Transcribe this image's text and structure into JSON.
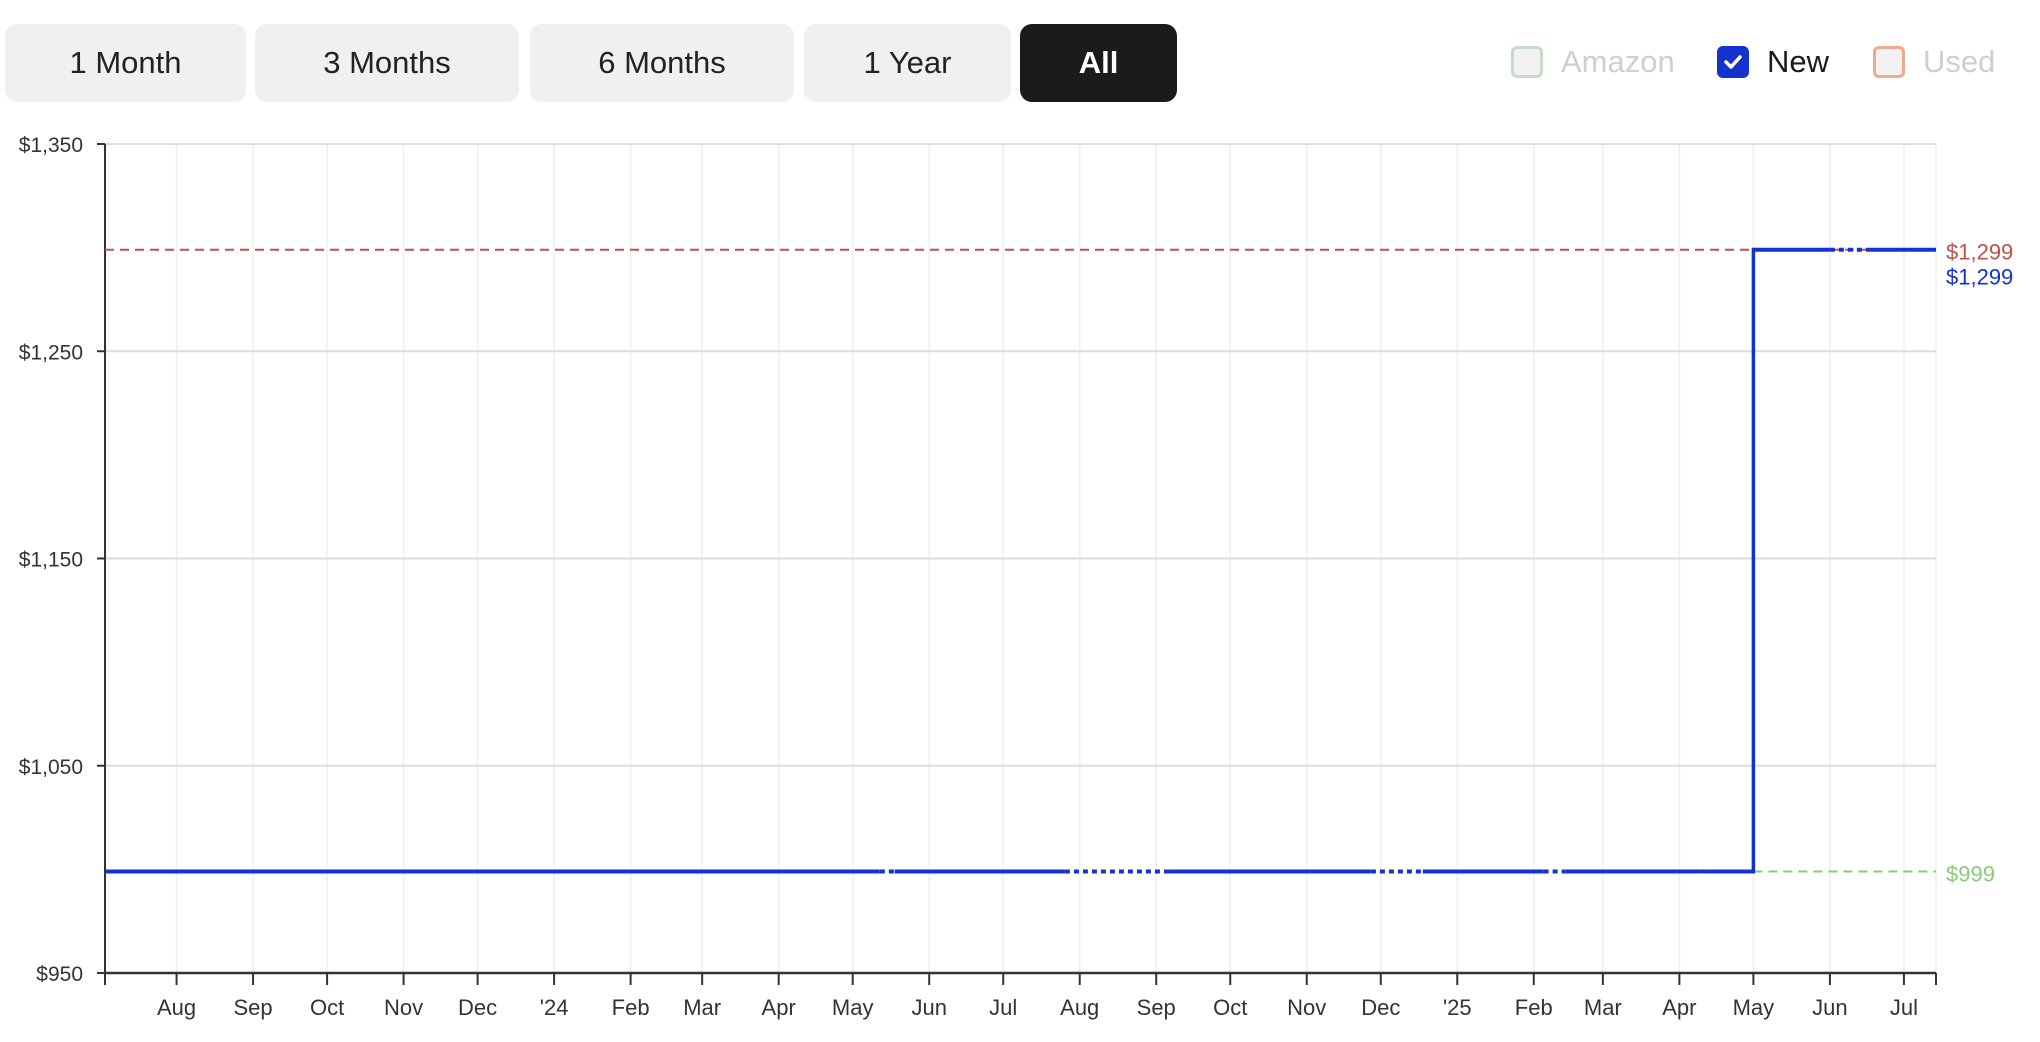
{
  "range_buttons": [
    {
      "label": "1 Month",
      "active": false
    },
    {
      "label": "3 Months",
      "active": false
    },
    {
      "label": "6 Months",
      "active": false
    },
    {
      "label": "1 Year",
      "active": false
    },
    {
      "label": "All",
      "active": true
    }
  ],
  "legend": [
    {
      "label": "Amazon",
      "checked": false,
      "color": "#c6dcc4"
    },
    {
      "label": "New",
      "checked": true,
      "color": "#1433cc"
    },
    {
      "label": "Used",
      "checked": false,
      "color": "#f2a98a"
    }
  ],
  "chart_data": {
    "type": "line",
    "xlim": [
      "2023-07-03",
      "2025-07-14"
    ],
    "ylim": [
      950,
      1350
    ],
    "y_ticks": [
      {
        "value": 1350,
        "label": "$1,350"
      },
      {
        "value": 1250,
        "label": "$1,250"
      },
      {
        "value": 1150,
        "label": "$1,150"
      },
      {
        "value": 1050,
        "label": "$1,050"
      },
      {
        "value": 950,
        "label": "$950"
      }
    ],
    "x_ticks": [
      {
        "date": "2023-08-01",
        "label": "Aug"
      },
      {
        "date": "2023-09-01",
        "label": "Sep"
      },
      {
        "date": "2023-10-01",
        "label": "Oct"
      },
      {
        "date": "2023-11-01",
        "label": "Nov"
      },
      {
        "date": "2023-12-01",
        "label": "Dec"
      },
      {
        "date": "2024-01-01",
        "label": "'24"
      },
      {
        "date": "2024-02-01",
        "label": "Feb"
      },
      {
        "date": "2024-03-01",
        "label": "Mar"
      },
      {
        "date": "2024-04-01",
        "label": "Apr"
      },
      {
        "date": "2024-05-01",
        "label": "May"
      },
      {
        "date": "2024-06-01",
        "label": "Jun"
      },
      {
        "date": "2024-07-01",
        "label": "Jul"
      },
      {
        "date": "2024-08-01",
        "label": "Aug"
      },
      {
        "date": "2024-09-01",
        "label": "Sep"
      },
      {
        "date": "2024-10-01",
        "label": "Oct"
      },
      {
        "date": "2024-11-01",
        "label": "Nov"
      },
      {
        "date": "2024-12-01",
        "label": "Dec"
      },
      {
        "date": "2025-01-01",
        "label": "'25"
      },
      {
        "date": "2025-02-01",
        "label": "Feb"
      },
      {
        "date": "2025-03-01",
        "label": "Mar"
      },
      {
        "date": "2025-04-01",
        "label": "Apr"
      },
      {
        "date": "2025-05-01",
        "label": "May"
      },
      {
        "date": "2025-06-01",
        "label": "Jun"
      },
      {
        "date": "2025-07-01",
        "label": "Jul"
      }
    ],
    "grid": true,
    "series": [
      {
        "name": "New",
        "color": "#1433cc",
        "steps": [
          {
            "start": "2023-07-03",
            "end": "2025-05-01",
            "price": 999
          },
          {
            "start": "2025-05-01",
            "end": "2025-07-14",
            "price": 1299
          }
        ],
        "dotted_gaps": [
          [
            "2024-05-12",
            "2024-05-18"
          ],
          [
            "2024-07-26",
            "2024-09-06"
          ],
          [
            "2024-11-27",
            "2024-12-18"
          ],
          [
            "2025-02-05",
            "2025-02-14"
          ],
          [
            "2025-04-09",
            "2025-04-11"
          ],
          [
            "2025-06-01",
            "2025-06-17"
          ]
        ]
      }
    ],
    "reference_lines": [
      {
        "kind": "highest",
        "value": 1299,
        "label": "$1,299",
        "color": "#c0504d"
      },
      {
        "kind": "lowest",
        "value": 999,
        "label": "$999",
        "color": "#8cc97a",
        "start": "2025-05-01"
      }
    ],
    "current_label": {
      "value": 1299,
      "label": "$1,299",
      "color": "#1433cc"
    }
  }
}
